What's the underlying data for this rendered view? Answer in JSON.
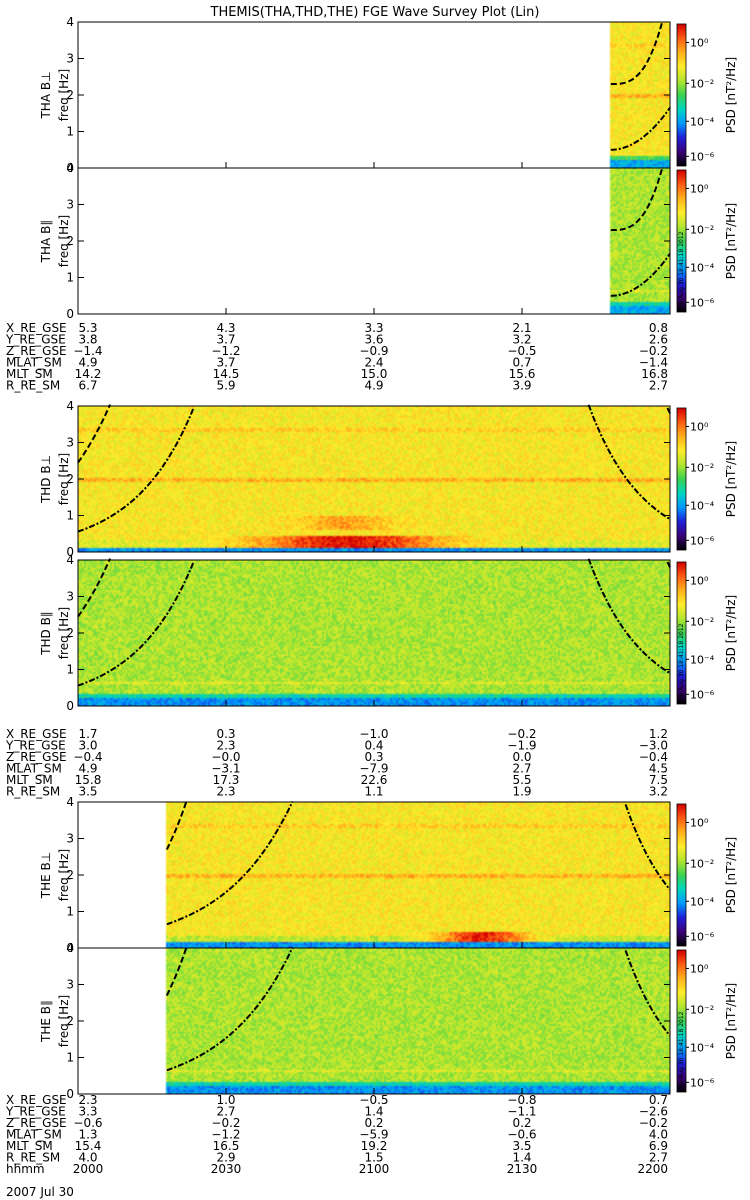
{
  "chart_data": {
    "type": "heatmap",
    "title": "THEMIS(THA,THD,THE) FGE Wave Survey Plot (Lin)",
    "date_label": "2007 Jul 30",
    "stamp": "Thu Aug 30 18:41:18 2012",
    "colorbar": {
      "label": "PSD [nT²/Hz]",
      "ticks": [
        "10⁰",
        "10⁻²",
        "10⁻⁴",
        "10⁻⁶"
      ]
    },
    "freq_axis": {
      "label": "freq [Hz]",
      "ticks": [
        "0",
        "1",
        "2",
        "3",
        "4"
      ],
      "ylim": [
        0,
        4
      ]
    },
    "time_axis": {
      "ticks": [
        "2000",
        "2030",
        "2100",
        "2130",
        "2200"
      ],
      "xlim": [
        0,
        120
      ]
    },
    "panels": [
      {
        "ylabel": "THA B⊥",
        "probe": 0,
        "comp": "perp"
      },
      {
        "ylabel": "THA B∥",
        "probe": 0,
        "comp": "par"
      },
      {
        "ylabel": "THD B⊥",
        "probe": 1,
        "comp": "perp"
      },
      {
        "ylabel": "THD B∥",
        "probe": 1,
        "comp": "par"
      },
      {
        "ylabel": "THE B⊥",
        "probe": 2,
        "comp": "perp"
      },
      {
        "ylabel": "THE B∥",
        "probe": 2,
        "comp": "par"
      }
    ],
    "probes": [
      {
        "name": "THA",
        "data_start_min": 108,
        "ephemeris": [
          {
            "label": "X_RE_GSE",
            "values": [
              "5.3",
              "4.3",
              "3.3",
              "2.1",
              "0.8"
            ]
          },
          {
            "label": "Y_RE_GSE",
            "values": [
              "3.8",
              "3.7",
              "3.6",
              "3.2",
              "2.6"
            ]
          },
          {
            "label": "Z_RE_GSE",
            "values": [
              "−1.4",
              "−1.2",
              "−0.9",
              "−0.5",
              "−0.2"
            ]
          },
          {
            "label": "MLAT_SM",
            "values": [
              "4.9",
              "3.7",
              "2.4",
              "0.7",
              "−1.4"
            ]
          },
          {
            "label": "MLT_SM",
            "values": [
              "14.2",
              "14.5",
              "15.0",
              "15.6",
              "16.8"
            ]
          },
          {
            "label": "R_RE_SM",
            "values": [
              "6.7",
              "5.9",
              "4.9",
              "3.9",
              "2.7"
            ]
          }
        ]
      },
      {
        "name": "THD",
        "data_start_min": 0,
        "ephemeris": [
          {
            "label": "X_RE_GSE",
            "values": [
              "1.7",
              "0.3",
              "−1.0",
              "−0.2",
              "1.2"
            ]
          },
          {
            "label": "Y_RE_GSE",
            "values": [
              "3.0",
              "2.3",
              "0.4",
              "−1.9",
              "−3.0"
            ]
          },
          {
            "label": "Z_RE_GSE",
            "values": [
              "−0.4",
              "−0.0",
              "0.3",
              "0.0",
              "−0.4"
            ]
          },
          {
            "label": "MLAT_SM",
            "values": [
              "4.9",
              "−3.1",
              "−7.9",
              "2.7",
              "4.5"
            ]
          },
          {
            "label": "MLT_SM",
            "values": [
              "15.8",
              "17.3",
              "22.6",
              "5.5",
              "7.5"
            ]
          },
          {
            "label": "R_RE_SM",
            "values": [
              "3.5",
              "2.3",
              "1.1",
              "1.9",
              "3.2"
            ]
          }
        ]
      },
      {
        "name": "THE",
        "data_start_min": 18,
        "ephemeris": [
          {
            "label": "X_RE_GSE",
            "values": [
              "2.3",
              "1.0",
              "−0.5",
              "−0.8",
              "0.7"
            ]
          },
          {
            "label": "Y_RE_GSE",
            "values": [
              "3.3",
              "2.7",
              "1.4",
              "−1.1",
              "−2.6"
            ]
          },
          {
            "label": "Z_RE_GSE",
            "values": [
              "−0.6",
              "−0.2",
              "0.2",
              "0.2",
              "−0.2"
            ]
          },
          {
            "label": "MLAT_SM",
            "values": [
              "1.3",
              "−1.2",
              "−5.9",
              "−0.6",
              "4.0"
            ]
          },
          {
            "label": "MLT_SM",
            "values": [
              "15.4",
              "16.5",
              "19.2",
              "3.5",
              "6.9"
            ]
          },
          {
            "label": "R_RE_SM",
            "values": [
              "4.0",
              "2.9",
              "1.5",
              "1.4",
              "2.7"
            ]
          },
          {
            "label": "hhmm",
            "values": [
              "2000",
              "2030",
              "2100",
              "2130",
              "2200"
            ]
          }
        ]
      }
    ]
  },
  "colors": {
    "colormap": [
      "#000000",
      "#3a0078",
      "#1f1fd8",
      "#0099ff",
      "#00d6c0",
      "#3cd250",
      "#b2e62e",
      "#ffec2a",
      "#ffb21c",
      "#ff5a12",
      "#d20000"
    ],
    "curve": "#000000"
  }
}
